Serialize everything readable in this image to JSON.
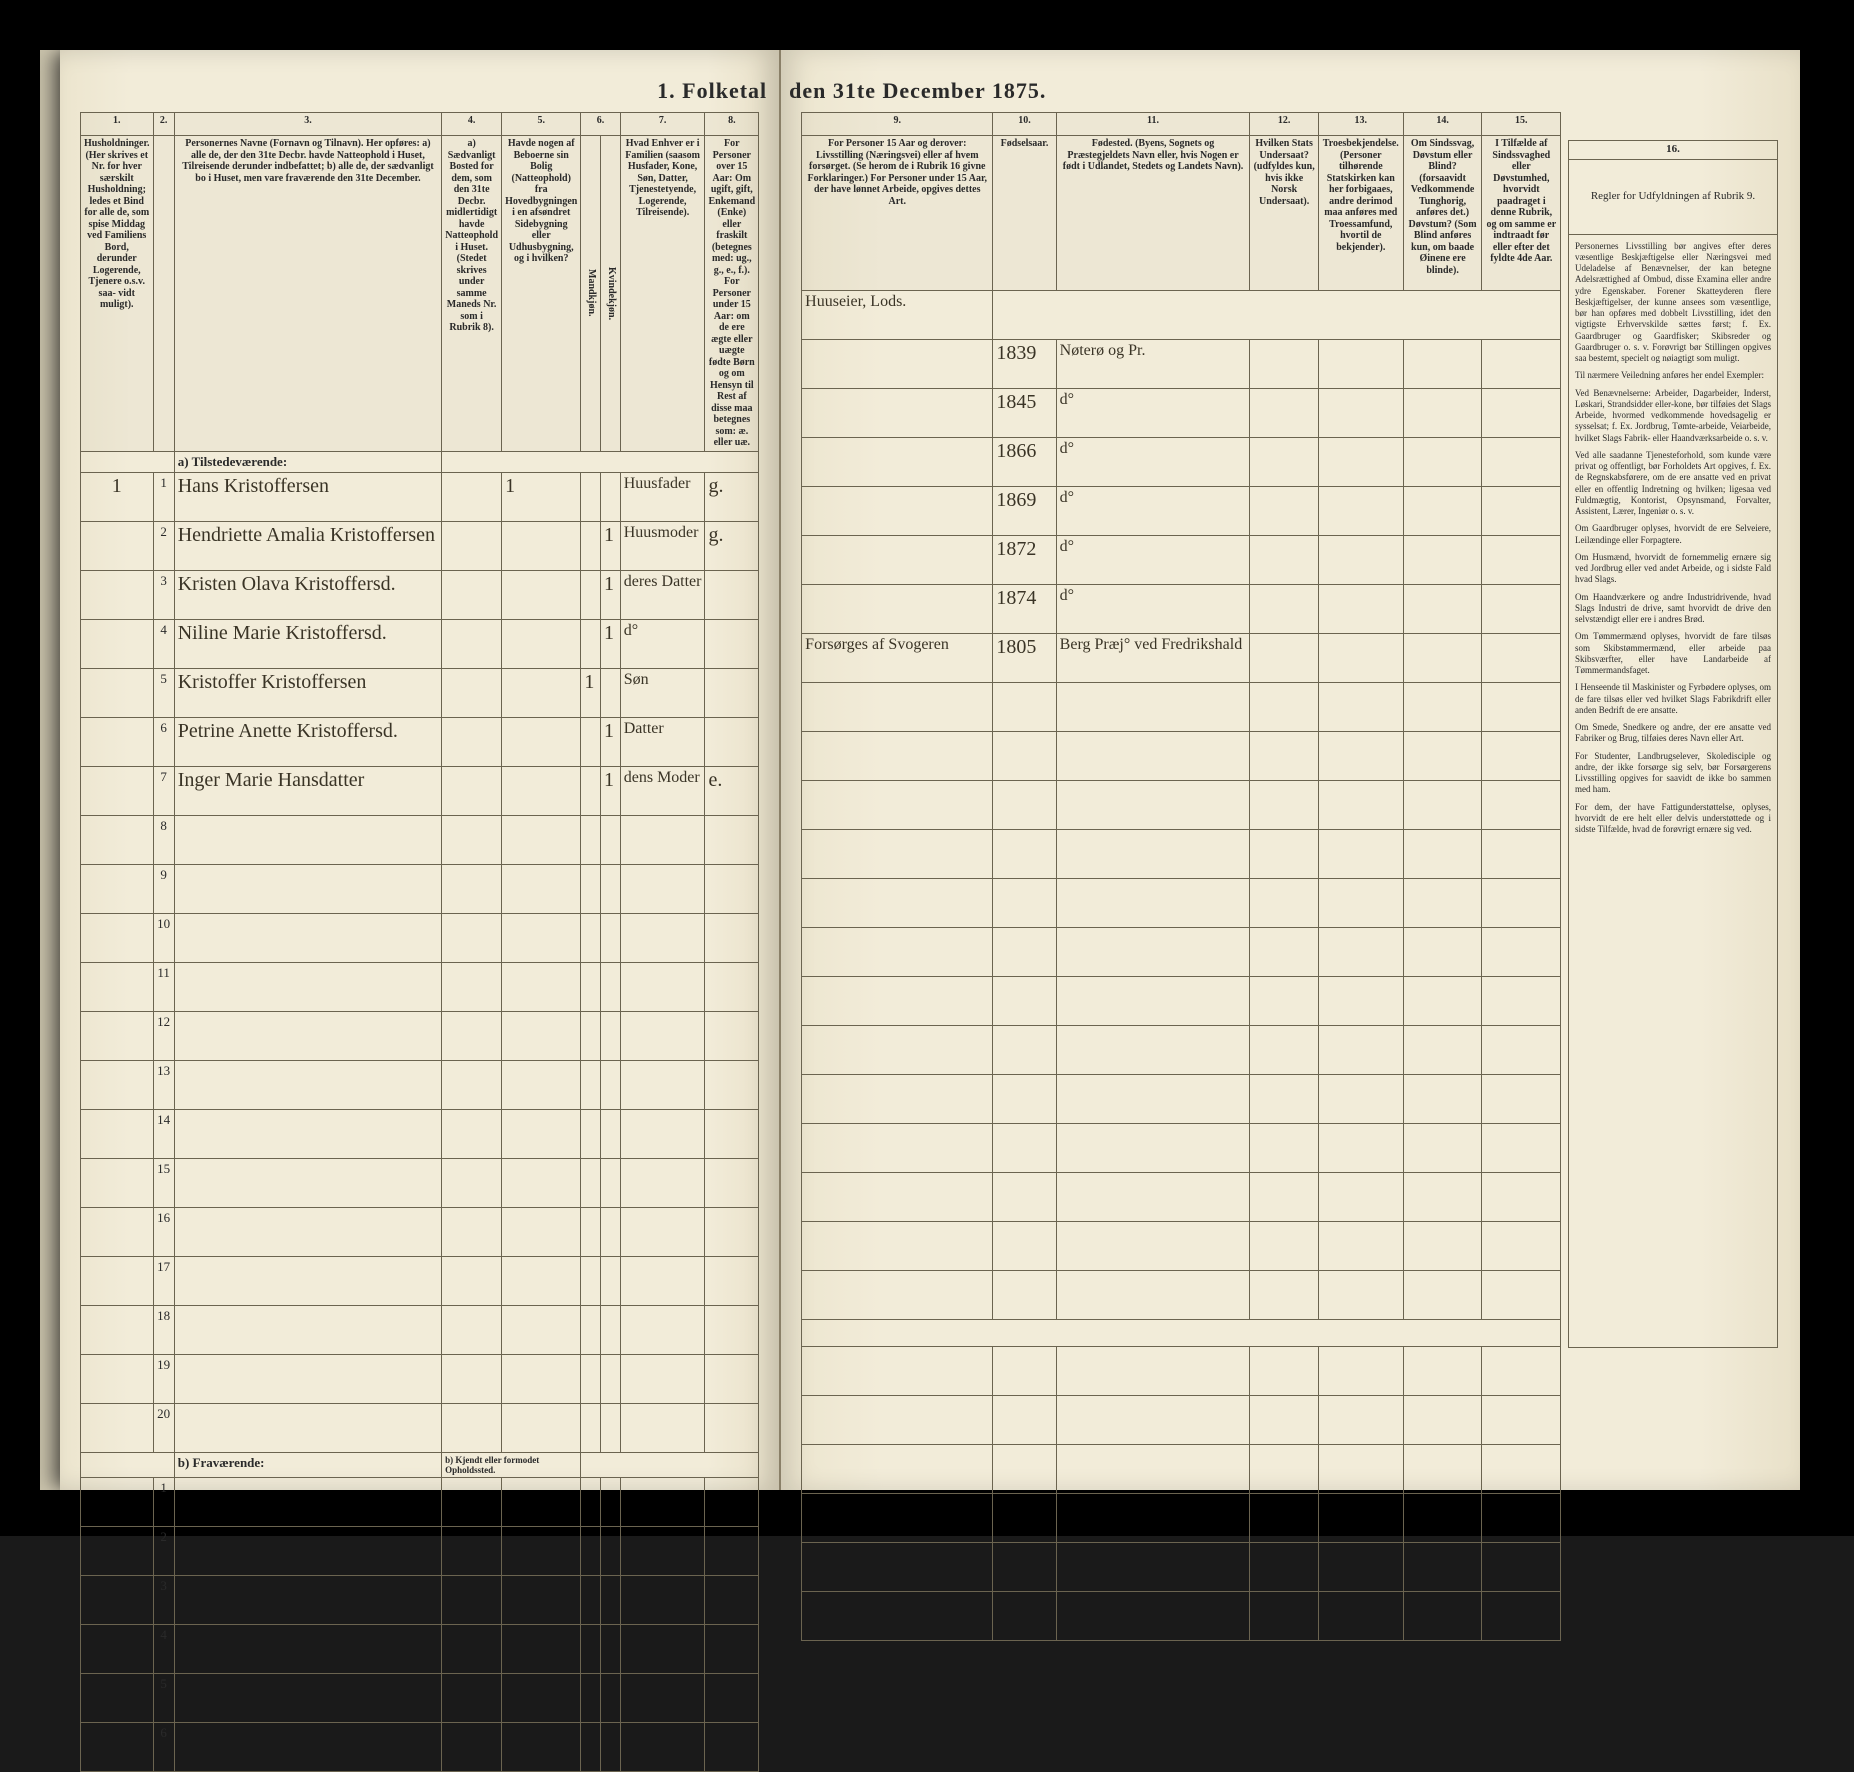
{
  "title_left": "1.  Folketal",
  "title_right": "den 31te December 1875.",
  "columns_left": {
    "nums": [
      "1.",
      "2.",
      "3.",
      "4.",
      "5.",
      "6.",
      "7.",
      "8."
    ],
    "heads": [
      "Husholdninger. (Her skrives et Nr. for hver særskilt Husholdning; ledes et Bind for alle de, som spise Middag ved Familiens Bord, derunder Logerende, Tjenere o.s.v. saa- vidt muligt).",
      "",
      "Personernes Navne (Fornavn og Tilnavn). Her opføres: a) alle de, der den 31te Decbr. havde Natteophold i Huset, Tilreisende derunder indbefattet; b) alle de, der sædvanligt bo i Huset, men vare fraværende den 31te December.",
      "a) Sædvanligt Bosted for dem, som den 31te Decbr. midlertidigt havde Natteophold i Huset. (Stedet skrives under samme Maneds Nr. som i Rubrik 8).",
      "Havde nogen af Beboerne sin Bolig (Natteophold) fra Hovedbygningen i en afsøndret Sidebygning eller Udhusbygning, og i hvilken?",
      "Kjøn.",
      "Hvad Enhver er i Familien (saasom Husfader, Kone, Søn, Datter, Tjenestetyende, Logerende, Tilreisende).",
      "For Personer over 15 Aar: Om ugift, gift, Enkemand (Enke) eller fraskilt (betegnes med: ug., g., e., f.). For Personer under 15 Aar: om de ere ægte eller uægte fødte Børn og om Hensyn til Rest af disse maa betegnes som: æ. eller uæ."
    ],
    "sub56": [
      "Mandkjøn.",
      "Kvindekjøn."
    ]
  },
  "columns_right": {
    "nums": [
      "9.",
      "10.",
      "11.",
      "12.",
      "13.",
      "14.",
      "15.",
      "16."
    ],
    "heads": [
      "For Personer 15 Aar og derover: Livsstilling (Næringsvei) eller af hvem forsørget. (Se herom de i Rubrik 16 givne Forklaringer.) For Personer under 15 Aar, der have lønnet Arbeide, opgives dettes Art.",
      "Fødselsaar.",
      "Fødested. (Byens, Sognets og Præstegjeldets Navn eller, hvis Nogen er født i Udlandet, Stedets og Landets Navn).",
      "Hvilken Stats Undersaat? (udfyldes kun, hvis ikke Norsk Undersaat).",
      "Troesbekjendelse. (Personer tilhørende Statskirken kan her forbigaaes, andre derimod maa anføres med Troessamfund, hvortil de bekjender).",
      "Om Sindssvag, Døvstum eller Blind? (forsaavidt Vedkommende Tunghorig, anføres det.) Døvstum? (Som Blind anføres kun, om baade Øinene ere blinde).",
      "I Tilfælde af Sindssvaghed eller Døvstumhed, hvorvidt paadraget i denne Rubrik, og om samme er indtraadt før eller efter det fyldte 4de Aar.",
      "Regler for Udfyldningen af Rubrik 9."
    ]
  },
  "section_a": "a) Tilstedeværende:",
  "section_b": "b) Fraværende:",
  "section_b_note": "b) Kjendt eller formodet Opholdssted.",
  "top_note_right": "Huuseier, Lods.",
  "rows": [
    {
      "hh": "1",
      "n": "1",
      "name": "Hans Kristoffersen",
      "col5": "1",
      "sex_m": "",
      "sex_k": "",
      "rel": "Huusfader",
      "civ": "g.",
      "occ": "",
      "year": "1839",
      "place": "Nøterø og Pr.",
      "stat": "",
      "rel2": "",
      "dis": "",
      "dis2": ""
    },
    {
      "hh": "",
      "n": "2",
      "name": "Hendriette Amalia Kristoffersen",
      "col5": "",
      "sex_m": "",
      "sex_k": "1",
      "rel": "Huusmoder",
      "civ": "g.",
      "occ": "",
      "year": "1845",
      "place": "d°",
      "stat": "",
      "rel2": "",
      "dis": "",
      "dis2": ""
    },
    {
      "hh": "",
      "n": "3",
      "name": "Kristen Olava Kristoffersd.",
      "col5": "",
      "sex_m": "",
      "sex_k": "1",
      "rel": "deres Datter",
      "civ": "",
      "occ": "",
      "year": "1866",
      "place": "d°",
      "stat": "",
      "rel2": "",
      "dis": "",
      "dis2": ""
    },
    {
      "hh": "",
      "n": "4",
      "name": "Niline Marie Kristoffersd.",
      "col5": "",
      "sex_m": "",
      "sex_k": "1",
      "rel": "d°",
      "civ": "",
      "occ": "",
      "year": "1869",
      "place": "d°",
      "stat": "",
      "rel2": "",
      "dis": "",
      "dis2": ""
    },
    {
      "hh": "",
      "n": "5",
      "name": "Kristoffer Kristoffersen",
      "col5": "",
      "sex_m": "1",
      "sex_k": "",
      "rel": "Søn",
      "civ": "",
      "occ": "",
      "year": "1872",
      "place": "d°",
      "stat": "",
      "rel2": "",
      "dis": "",
      "dis2": ""
    },
    {
      "hh": "",
      "n": "6",
      "name": "Petrine Anette Kristoffersd.",
      "col5": "",
      "sex_m": "",
      "sex_k": "1",
      "rel": "Datter",
      "civ": "",
      "occ": "",
      "year": "1874",
      "place": "d°",
      "stat": "",
      "rel2": "",
      "dis": "",
      "dis2": ""
    },
    {
      "hh": "",
      "n": "7",
      "name": "Inger Marie Hansdatter",
      "col5": "",
      "sex_m": "",
      "sex_k": "1",
      "rel": "dens Moder",
      "civ": "e.",
      "occ": "Forsørges af Svogeren",
      "year": "1805",
      "place": "Berg Præj° ved Fredrikshald",
      "stat": "",
      "rel2": "",
      "dis": "",
      "dis2": ""
    }
  ],
  "empty_rows_a": [
    "8",
    "9",
    "10",
    "11",
    "12",
    "13",
    "14",
    "15",
    "16",
    "17",
    "18",
    "19",
    "20"
  ],
  "empty_rows_b": [
    "1",
    "2",
    "3",
    "4",
    "5",
    "6"
  ],
  "instructions_title": "Regler for Udfyldningen af Rubrik 9.",
  "instructions_paras": [
    "Personernes Livsstilling bør angives efter deres væsentlige Beskjæftigelse eller Næringsvei med Udeladelse af Benævnelser, der kan betegne Adelsrættighed af Ombud, disse Examina eller andre ydre Egenskaber. Forener Skatteyderen flere Beskjæftigelser, der kunne ansees som væsentlige, bør han opføres med dobbelt Livsstilling, idet den vigtigste Erhvervskilde sættes først; f. Ex. Gaardbruger og Gaardfisker; Skibsreder og Gaardbruger o. s. v. Forøvrigt bør Stillingen opgives saa bestemt, specielt og nøiagtigt som muligt.",
    "Til nærmere Veiledning anføres her endel Exempler:",
    "Ved Benævnelserne: Arbeider, Dagarbeider, Inderst, Løskari, Strandsidder eller-kone, bør tilføies det Slags Arbeide, hvormed vedkommende hovedsagelig er sysselsat; f. Ex. Jordbrug, Tømte-arbeide, Veiarbeide, hvilket Slags Fabrik- eller Haandværksarbeide o. s. v.",
    "Ved alle saadanne Tjenesteforhold, som kunde være privat og offentligt, bør Forholdets Art opgives, f. Ex. de Regnskabsførere, om de ere ansatte ved en privat eller en offentlig Indretning og hvilken; ligesaa ved Fuldmægtig, Kontorist, Opsynsmand, Forvalter, Assistent, Lærer, Ingeniør o. s. v.",
    "Om Gaardbruger oplyses, hvorvidt de ere Selveiere, Leilændinge eller Forpagtere.",
    "Om Husmænd, hvorvidt de fornemmelig ernære sig ved Jordbrug eller ved andet Arbeide, og i sidste Fald hvad Slags.",
    "Om Haandværkere og andre Industridrivende, hvad Slags Industri de drive, samt hvorvidt de drive den selvstændigt eller ere i andres Brød.",
    "Om Tømmermænd oplyses, hvorvidt de fare tilsøs som Skibstømmermænd, eller arbeide paa Skibsværfter, eller have Landarbeide af Tømmermandsfaget.",
    "I Henseende til Maskinister og Fyrbødere oplyses, om de fare tilsøs eller ved hvilket Slags Fabrikdrift eller anden Bedrift de ere ansatte.",
    "Om Smede, Snedkere og andre, der ere ansatte ved Fabriker og Brug, tilføies deres Navn eller Art.",
    "For Studenter, Landbrugselever, Skoledisciple og andre, der ikke forsørge sig selv, bør Forsørgerens Livsstilling opgives for saavidt de ikke bo sammen med ham.",
    "For dem, der have Fattigunderstøttelse, oplyses, hvorvidt de ere helt eller delvis understøttede og i sidste Tilfælde, hvad de forøvrigt ernære sig ved."
  ],
  "colors": {
    "paper": "#f2ecd9",
    "ink": "#2a2a2a",
    "rule": "#6b6450",
    "hand": "#3a3426",
    "bg": "#1a1a1a"
  }
}
